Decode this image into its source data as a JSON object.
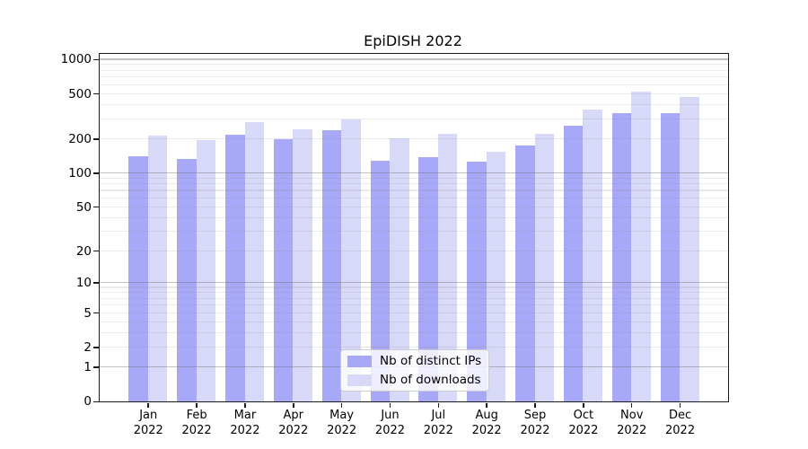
{
  "title": "EpiDISH 2022",
  "chart_data": {
    "type": "bar",
    "categories": [
      "Jan",
      "Feb",
      "Mar",
      "Apr",
      "May",
      "Jun",
      "Jul",
      "Aug",
      "Sep",
      "Oct",
      "Nov",
      "Dec"
    ],
    "year_label": "2022",
    "series": [
      {
        "name": "Nb of distinct IPs",
        "color": "#a8a8f8",
        "values": [
          141,
          133,
          218,
          199,
          236,
          127,
          137,
          126,
          176,
          261,
          334,
          334
        ]
      },
      {
        "name": "Nb of downloads",
        "color": "#d8d8f8",
        "values": [
          212,
          196,
          280,
          241,
          298,
          201,
          222,
          154,
          220,
          361,
          521,
          466
        ]
      }
    ],
    "yscale": "log1p",
    "ylim": [
      0,
      1000
    ],
    "ytick_values": [
      1000,
      500,
      200,
      100,
      50,
      20,
      10,
      5,
      2,
      1,
      0
    ],
    "ytick_labels": [
      "1000",
      "500",
      "200",
      "100",
      "50",
      "20",
      "10",
      "5",
      "2",
      "1",
      "0"
    ],
    "grid": true,
    "legend_position": "lower center"
  },
  "colors": {
    "background": "#ffffff",
    "spine": "#1a1a1a",
    "major_grid": "#c2c2c2",
    "minor_grid": "#e6e6e6",
    "bar_distinct_ips": "#a8a8f8",
    "bar_downloads": "#d8d8f8"
  }
}
